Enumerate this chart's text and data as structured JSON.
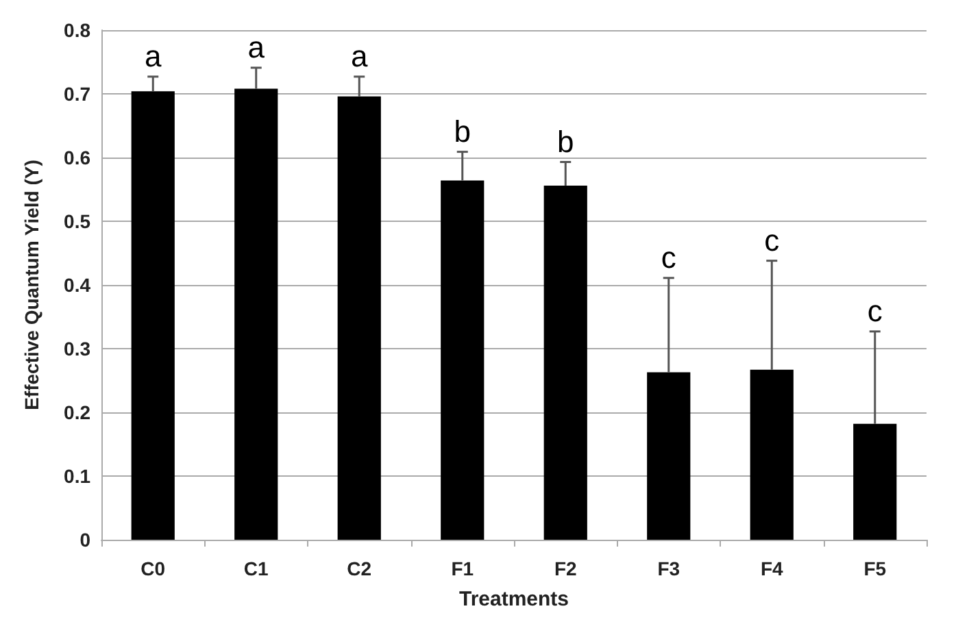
{
  "chart_data": {
    "type": "bar",
    "xlabel": "Treatments",
    "ylabel": "Effective Quantum Yield (Y)",
    "categories": [
      "C0",
      "C1",
      "C2",
      "F1",
      "F2",
      "F3",
      "F4",
      "F5"
    ],
    "values": [
      0.704,
      0.708,
      0.696,
      0.564,
      0.556,
      0.263,
      0.267,
      0.182
    ],
    "errors": [
      [
        0.704,
        0.727
      ],
      [
        0.708,
        0.741
      ],
      [
        0.696,
        0.727
      ],
      [
        0.564,
        0.609
      ],
      [
        0.556,
        0.593
      ],
      [
        0.263,
        0.411
      ],
      [
        0.267,
        0.438
      ],
      [
        0.182,
        0.327
      ]
    ],
    "color": "#000000",
    "ylim": [
      0,
      0.8
    ],
    "yticks": [
      0,
      0.1,
      0.2,
      0.3,
      0.4,
      0.5,
      0.6,
      0.7,
      0.8
    ],
    "grid": "y",
    "annotations": [
      {
        "text": "a",
        "x": "C0",
        "y": 0.727
      },
      {
        "text": "a",
        "x": "C1",
        "y": 0.741
      },
      {
        "text": "a",
        "x": "C2",
        "y": 0.727
      },
      {
        "text": "b",
        "x": "F1",
        "y": 0.609
      },
      {
        "text": "b",
        "x": "F2",
        "y": 0.593
      },
      {
        "text": "c",
        "x": "F3",
        "y": 0.411
      },
      {
        "text": "c",
        "x": "F4",
        "y": 0.438
      },
      {
        "text": "c",
        "x": "F5",
        "y": 0.327
      }
    ]
  }
}
